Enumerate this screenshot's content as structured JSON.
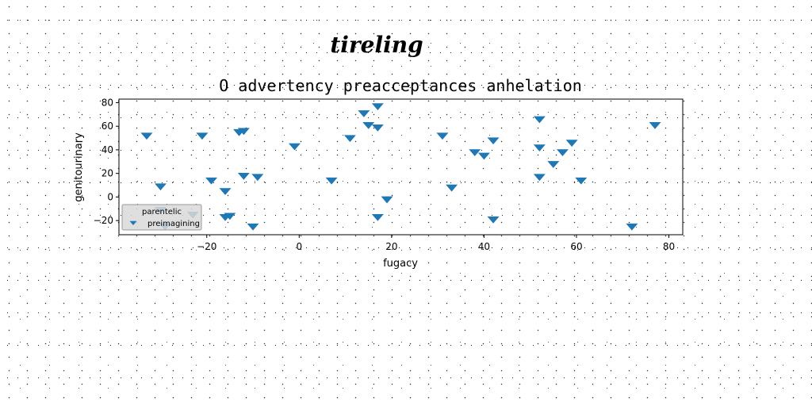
{
  "chart_data": {
    "type": "scatter",
    "suptitle": "tireling",
    "title": "O advertency preacceptances anhelation",
    "xlabel": "fugacy",
    "ylabel": "genitourinary",
    "xlim": [
      -39,
      83
    ],
    "ylim": [
      -32,
      83
    ],
    "xticks": [
      -20,
      0,
      20,
      40,
      60,
      80
    ],
    "yticks": [
      -20,
      0,
      20,
      40,
      60,
      80
    ],
    "grid": false,
    "legend": {
      "title": "parentelic",
      "placement": "lower-left"
    },
    "series": [
      {
        "name": "preimagining",
        "marker": "triangle-down",
        "color": "#1f77b4",
        "points": [
          [
            -33,
            52
          ],
          [
            -30,
            -11
          ],
          [
            -30,
            9
          ],
          [
            -29,
            -25
          ],
          [
            -23,
            -15
          ],
          [
            -21,
            52
          ],
          [
            -19,
            14
          ],
          [
            -16,
            5
          ],
          [
            -16,
            -17
          ],
          [
            -15,
            -16
          ],
          [
            -13,
            55
          ],
          [
            -12,
            56
          ],
          [
            -12,
            18
          ],
          [
            -10,
            -25
          ],
          [
            -9,
            17
          ],
          [
            -1,
            43
          ],
          [
            7,
            14
          ],
          [
            11,
            50
          ],
          [
            14,
            71
          ],
          [
            15,
            61
          ],
          [
            17,
            77
          ],
          [
            17,
            59
          ],
          [
            17,
            -17
          ],
          [
            19,
            -2
          ],
          [
            31,
            52
          ],
          [
            33,
            8
          ],
          [
            38,
            38
          ],
          [
            40,
            35
          ],
          [
            42,
            48
          ],
          [
            42,
            -19
          ],
          [
            52,
            66
          ],
          [
            52,
            42
          ],
          [
            52,
            17
          ],
          [
            55,
            28
          ],
          [
            57,
            38
          ],
          [
            59,
            46
          ],
          [
            61,
            14
          ],
          [
            72,
            -25
          ],
          [
            77,
            61
          ]
        ]
      }
    ]
  }
}
